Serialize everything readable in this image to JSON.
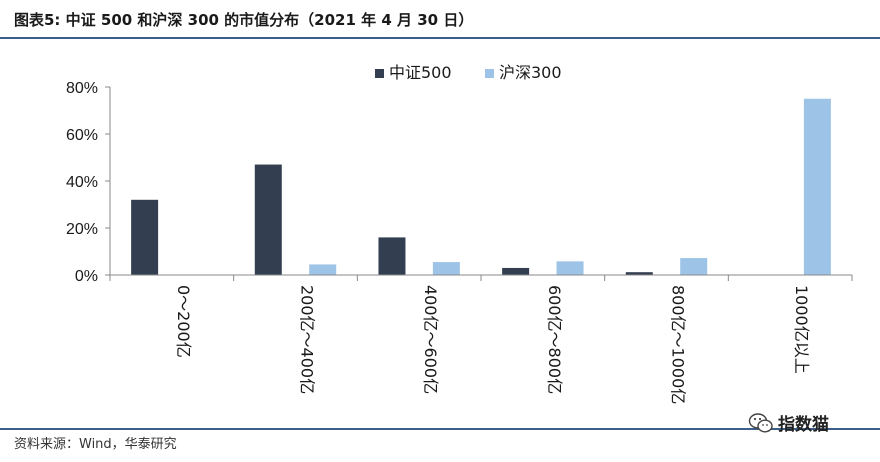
{
  "header": {
    "title": "图表5:   中证 500 和沪深 300 的市值分布（2021 年 4 月 30 日）"
  },
  "footer": {
    "source": "资料来源：Wind，华泰研究"
  },
  "watermark": {
    "text": "指数猫",
    "icon": "wechat-icon"
  },
  "colors": {
    "series_1": "#333f50",
    "series_2": "#9dc3e6",
    "rule": "#3b5f8a"
  },
  "chart_data": {
    "type": "bar",
    "categories": [
      "0～200亿",
      "200亿～400亿",
      "400亿～600亿",
      "600亿～800亿",
      "800亿～1000亿",
      "1000亿以上"
    ],
    "series": [
      {
        "name": "中证500",
        "values": [
          32,
          47,
          16,
          3,
          1.2,
          0
        ]
      },
      {
        "name": "沪深300",
        "values": [
          0,
          4.5,
          5.5,
          5.8,
          7.2,
          75
        ]
      }
    ],
    "yticks": [
      "0%",
      "20%",
      "40%",
      "60%",
      "80%"
    ],
    "ylim": [
      0,
      80
    ],
    "legend": "top-center",
    "grid": false
  }
}
